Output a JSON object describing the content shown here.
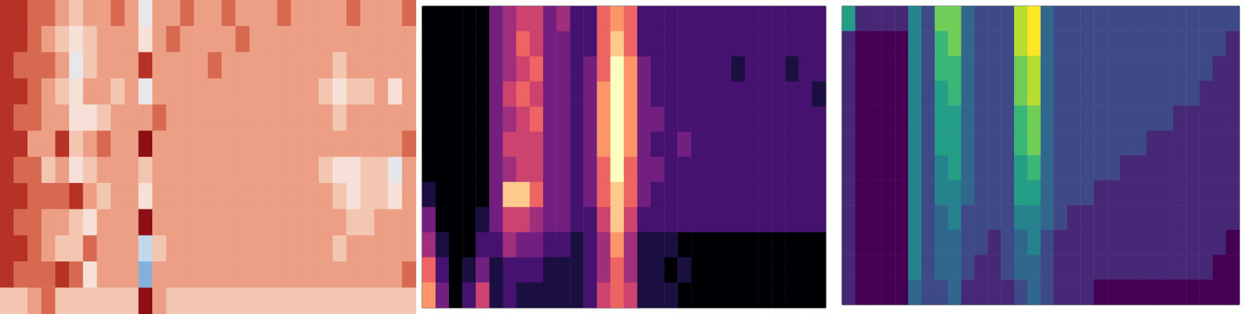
{
  "chart_data": [
    {
      "type": "heatmap",
      "tick_labels": false,
      "zlim": [
        0,
        9
      ],
      "cells": [
        [
          8,
          8,
          7,
          7,
          6,
          5,
          6,
          6,
          7,
          6,
          3,
          6,
          6,
          7,
          6,
          6,
          7,
          6,
          6,
          6,
          7,
          6,
          6,
          6,
          6,
          7,
          6,
          6,
          6,
          7
        ],
        [
          8,
          8,
          7,
          6,
          5,
          4,
          5,
          6,
          6,
          6,
          4,
          6,
          7,
          6,
          6,
          6,
          6,
          7,
          6,
          6,
          6,
          6,
          6,
          6,
          6,
          6,
          6,
          6,
          6,
          6
        ],
        [
          8,
          7,
          7,
          7,
          6,
          3,
          5,
          6,
          6,
          6,
          8,
          6,
          6,
          6,
          6,
          7,
          6,
          6,
          6,
          6,
          6,
          6,
          6,
          6,
          5,
          6,
          6,
          6,
          6,
          6
        ],
        [
          8,
          8,
          7,
          6,
          5,
          4,
          6,
          6,
          5,
          6,
          3,
          6,
          6,
          6,
          6,
          6,
          6,
          6,
          6,
          6,
          6,
          6,
          6,
          5,
          4,
          5,
          5,
          6,
          4,
          6
        ],
        [
          8,
          7,
          7,
          6,
          6,
          4,
          4,
          5,
          6,
          6,
          6,
          7,
          6,
          6,
          6,
          6,
          6,
          6,
          6,
          6,
          6,
          6,
          6,
          6,
          5,
          6,
          6,
          6,
          6,
          6
        ],
        [
          8,
          8,
          6,
          6,
          8,
          5,
          6,
          7,
          6,
          6,
          9,
          6,
          6,
          6,
          6,
          6,
          6,
          6,
          6,
          6,
          6,
          6,
          6,
          6,
          6,
          6,
          6,
          6,
          6,
          7
        ],
        [
          8,
          7,
          7,
          5,
          6,
          4,
          5,
          6,
          6,
          6,
          5,
          6,
          6,
          6,
          6,
          6,
          6,
          6,
          6,
          6,
          6,
          6,
          6,
          5,
          4,
          4,
          5,
          5,
          3,
          6
        ],
        [
          8,
          8,
          7,
          7,
          7,
          8,
          6,
          5,
          6,
          6,
          4,
          6,
          6,
          6,
          6,
          6,
          6,
          6,
          6,
          6,
          6,
          6,
          6,
          6,
          5,
          4,
          5,
          5,
          4,
          6
        ],
        [
          8,
          7,
          7,
          6,
          6,
          5,
          4,
          6,
          6,
          6,
          9,
          6,
          6,
          6,
          6,
          6,
          6,
          6,
          6,
          6,
          6,
          6,
          6,
          6,
          6,
          5,
          5,
          6,
          6,
          6
        ],
        [
          8,
          8,
          7,
          6,
          5,
          5,
          7,
          6,
          6,
          6,
          2,
          5,
          6,
          6,
          6,
          6,
          6,
          6,
          6,
          6,
          6,
          6,
          6,
          6,
          5,
          6,
          6,
          6,
          6,
          6
        ],
        [
          8,
          7,
          7,
          7,
          8,
          7,
          4,
          6,
          6,
          6,
          1,
          6,
          6,
          6,
          6,
          6,
          6,
          6,
          6,
          6,
          6,
          6,
          6,
          6,
          6,
          6,
          6,
          6,
          6,
          7
        ],
        [
          5,
          5,
          6,
          7,
          5,
          5,
          5,
          5,
          5,
          5,
          9,
          6,
          5,
          5,
          5,
          5,
          5,
          5,
          5,
          5,
          5,
          5,
          5,
          5,
          5,
          5,
          5,
          5,
          5,
          5
        ]
      ]
    },
    {
      "type": "heatmap",
      "tick_labels": false,
      "zlim": [
        0,
        9
      ],
      "cells": [
        [
          0,
          0,
          0,
          0,
          0,
          3,
          4,
          5,
          5,
          3,
          4,
          2,
          2,
          6,
          7,
          6,
          2,
          2,
          2,
          2,
          2,
          2,
          2,
          2,
          2,
          2,
          2,
          2,
          2,
          2
        ],
        [
          0,
          0,
          0,
          0,
          0,
          3,
          4,
          6,
          5,
          3,
          3,
          2,
          2,
          6,
          8,
          6,
          2,
          2,
          2,
          2,
          2,
          2,
          2,
          2,
          2,
          2,
          2,
          2,
          2,
          2
        ],
        [
          0,
          0,
          0,
          0,
          0,
          3,
          4,
          5,
          6,
          3,
          3,
          2,
          3,
          6,
          9,
          7,
          3,
          2,
          2,
          2,
          2,
          2,
          2,
          1,
          2,
          2,
          2,
          1,
          2,
          2
        ],
        [
          0,
          0,
          0,
          0,
          0,
          3,
          5,
          6,
          5,
          3,
          3,
          2,
          3,
          7,
          9,
          7,
          3,
          2,
          2,
          2,
          2,
          2,
          2,
          2,
          2,
          2,
          2,
          2,
          2,
          1
        ],
        [
          0,
          0,
          0,
          0,
          0,
          3,
          4,
          5,
          6,
          3,
          3,
          2,
          3,
          7,
          9,
          7,
          3,
          3,
          2,
          2,
          2,
          2,
          2,
          2,
          2,
          2,
          2,
          2,
          2,
          2
        ],
        [
          0,
          0,
          0,
          0,
          0,
          3,
          5,
          5,
          5,
          3,
          3,
          2,
          3,
          7,
          9,
          7,
          3,
          2,
          2,
          3,
          2,
          2,
          2,
          2,
          2,
          2,
          2,
          2,
          2,
          2
        ],
        [
          0,
          0,
          0,
          0,
          0,
          3,
          4,
          5,
          5,
          3,
          3,
          2,
          3,
          6,
          9,
          6,
          3,
          3,
          2,
          2,
          2,
          2,
          2,
          2,
          2,
          2,
          2,
          2,
          2,
          2
        ],
        [
          1,
          0,
          0,
          0,
          0,
          3,
          8,
          8,
          6,
          3,
          3,
          2,
          3,
          6,
          8,
          6,
          3,
          2,
          2,
          2,
          2,
          2,
          2,
          2,
          2,
          2,
          2,
          2,
          2,
          2
        ],
        [
          3,
          0,
          0,
          0,
          1,
          3,
          5,
          5,
          4,
          3,
          3,
          2,
          2,
          5,
          8,
          5,
          2,
          2,
          2,
          2,
          2,
          2,
          2,
          2,
          2,
          2,
          2,
          2,
          2,
          2
        ],
        [
          4,
          1,
          0,
          0,
          2,
          2,
          4,
          3,
          3,
          2,
          2,
          1,
          2,
          4,
          7,
          4,
          1,
          1,
          1,
          0,
          0,
          0,
          0,
          0,
          0,
          0,
          0,
          0,
          0,
          0
        ],
        [
          6,
          2,
          0,
          1,
          3,
          1,
          2,
          2,
          2,
          1,
          1,
          1,
          2,
          4,
          6,
          4,
          1,
          1,
          0,
          1,
          0,
          0,
          0,
          0,
          0,
          0,
          0,
          0,
          0,
          0
        ],
        [
          7,
          3,
          0,
          2,
          5,
          1,
          2,
          1,
          1,
          1,
          1,
          1,
          2,
          5,
          6,
          5,
          1,
          1,
          1,
          0,
          0,
          0,
          0,
          0,
          0,
          0,
          0,
          0,
          0,
          0
        ]
      ]
    },
    {
      "type": "heatmap",
      "tick_labels": false,
      "zlim": [
        0,
        9
      ],
      "cells": [
        [
          5,
          1,
          1,
          1,
          1,
          4,
          2,
          7,
          7,
          3,
          2,
          2,
          2,
          8,
          9,
          3,
          2,
          2,
          2,
          2,
          2,
          2,
          2,
          2,
          2,
          2,
          2,
          2,
          2,
          2
        ],
        [
          1,
          0,
          0,
          0,
          0,
          4,
          2,
          6,
          7,
          3,
          2,
          2,
          2,
          8,
          9,
          3,
          2,
          2,
          2,
          2,
          2,
          2,
          2,
          2,
          2,
          2,
          2,
          2,
          2,
          1
        ],
        [
          1,
          0,
          0,
          0,
          0,
          4,
          2,
          6,
          6,
          3,
          2,
          2,
          2,
          7,
          8,
          3,
          2,
          2,
          2,
          2,
          2,
          2,
          2,
          2,
          2,
          2,
          2,
          2,
          1,
          1
        ],
        [
          1,
          0,
          0,
          0,
          0,
          4,
          2,
          5,
          6,
          3,
          2,
          2,
          2,
          7,
          8,
          3,
          2,
          2,
          2,
          2,
          2,
          2,
          2,
          2,
          2,
          2,
          2,
          1,
          1,
          1
        ],
        [
          1,
          0,
          0,
          0,
          0,
          4,
          2,
          5,
          5,
          3,
          2,
          2,
          2,
          6,
          7,
          3,
          2,
          2,
          2,
          2,
          2,
          2,
          2,
          2,
          2,
          1,
          1,
          1,
          1,
          1
        ],
        [
          1,
          0,
          0,
          0,
          0,
          4,
          2,
          5,
          5,
          3,
          2,
          2,
          2,
          6,
          7,
          3,
          2,
          2,
          2,
          2,
          2,
          2,
          2,
          1,
          1,
          1,
          1,
          1,
          1,
          1
        ],
        [
          1,
          0,
          0,
          0,
          0,
          4,
          2,
          4,
          5,
          3,
          2,
          2,
          2,
          5,
          6,
          3,
          2,
          2,
          2,
          2,
          2,
          1,
          1,
          1,
          1,
          1,
          1,
          1,
          1,
          1
        ],
        [
          1,
          0,
          0,
          0,
          0,
          4,
          2,
          4,
          4,
          3,
          2,
          2,
          2,
          5,
          5,
          3,
          2,
          2,
          2,
          1,
          1,
          1,
          1,
          1,
          1,
          1,
          1,
          1,
          1,
          1
        ],
        [
          1,
          0,
          0,
          0,
          0,
          4,
          2,
          3,
          4,
          2,
          2,
          2,
          2,
          4,
          4,
          3,
          2,
          1,
          1,
          1,
          1,
          1,
          1,
          1,
          1,
          1,
          1,
          1,
          1,
          1
        ],
        [
          1,
          0,
          0,
          0,
          0,
          4,
          2,
          3,
          3,
          2,
          2,
          1,
          2,
          3,
          4,
          2,
          1,
          1,
          1,
          1,
          1,
          1,
          1,
          1,
          1,
          1,
          1,
          1,
          1,
          0
        ],
        [
          1,
          0,
          0,
          0,
          0,
          4,
          2,
          3,
          3,
          2,
          1,
          1,
          2,
          3,
          3,
          2,
          1,
          1,
          1,
          1,
          1,
          1,
          1,
          1,
          1,
          1,
          1,
          1,
          0,
          0
        ],
        [
          1,
          0,
          0,
          0,
          0,
          3,
          2,
          2,
          3,
          1,
          1,
          1,
          1,
          2,
          3,
          2,
          1,
          1,
          1,
          0,
          0,
          0,
          0,
          0,
          0,
          0,
          0,
          0,
          0,
          0
        ]
      ]
    }
  ]
}
